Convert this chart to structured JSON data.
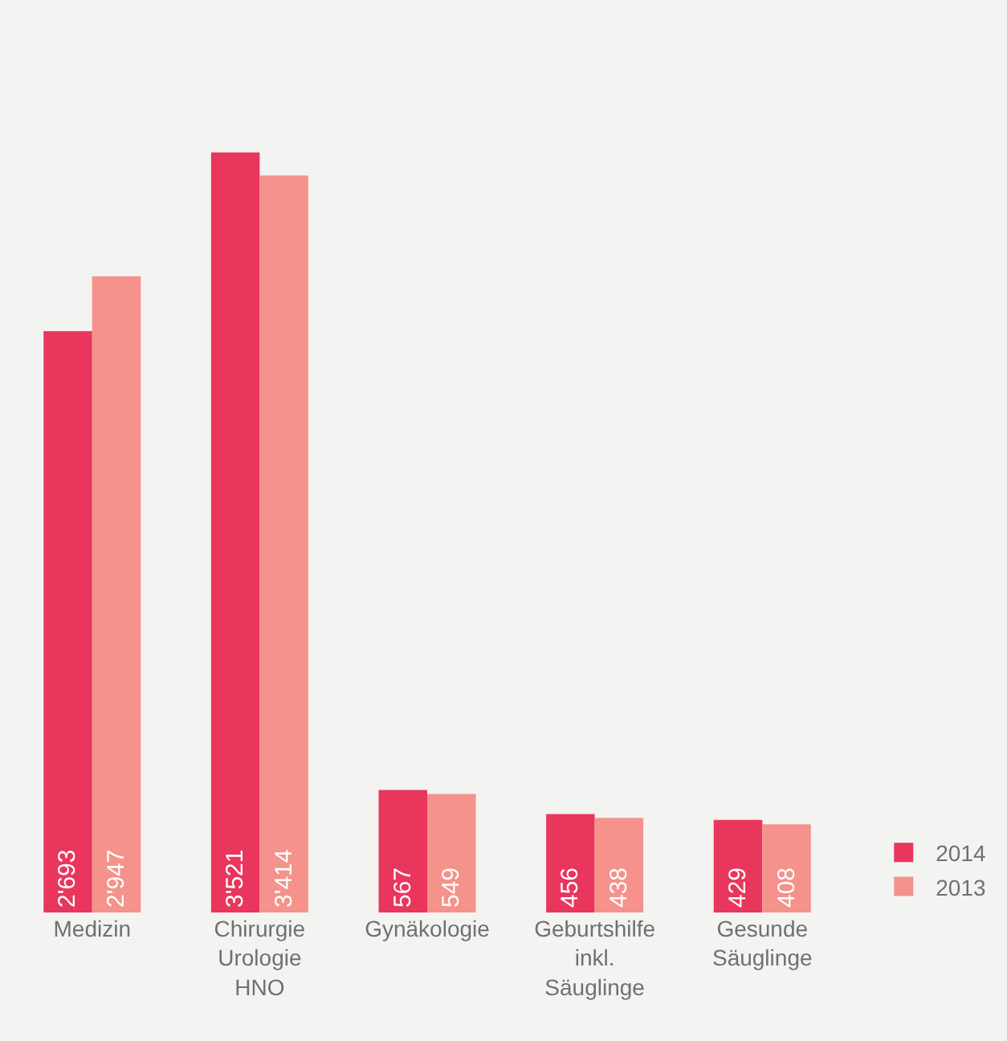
{
  "chart_data": {
    "type": "bar",
    "categories": [
      "Medizin",
      "Chirurgie\nUrologie\nHNO",
      "Gynäkologie",
      "Geburtshilfe\ninkl.\nSäuglinge",
      "Gesunde\nSäuglinge"
    ],
    "series": [
      {
        "name": "2014",
        "color": "#e8365d",
        "values": [
          2693,
          3521,
          567,
          456,
          429
        ],
        "value_labels": [
          "2'693",
          "3'521",
          "567",
          "456",
          "429"
        ]
      },
      {
        "name": "2013",
        "color": "#f4928b",
        "values": [
          2947,
          3414,
          549,
          438,
          408
        ],
        "value_labels": [
          "2'947",
          "3'414",
          "549",
          "438",
          "408"
        ]
      }
    ],
    "legend": "bottom right",
    "grid": false
  }
}
